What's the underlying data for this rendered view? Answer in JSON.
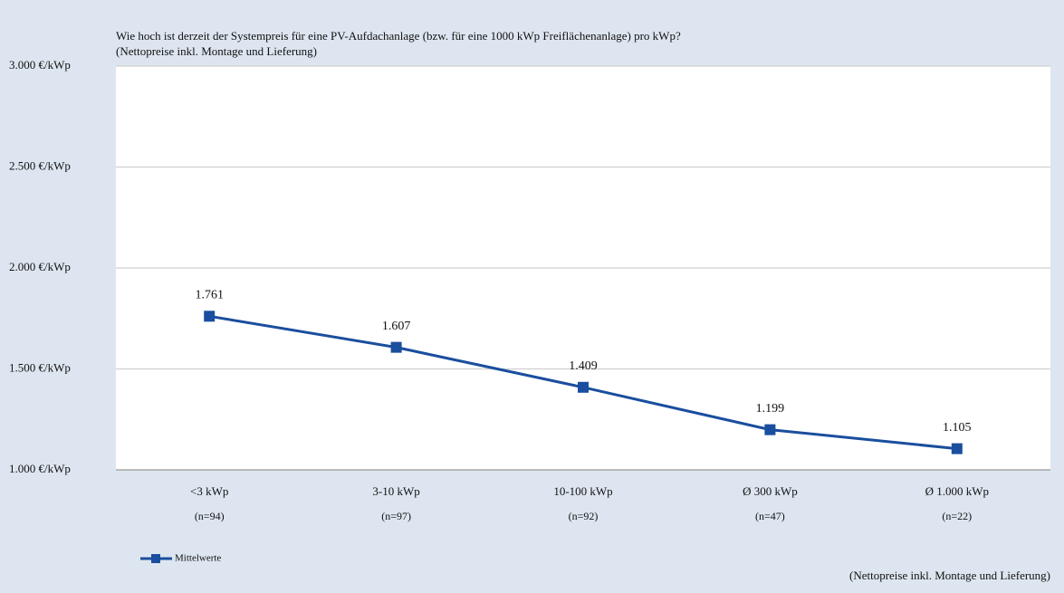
{
  "chart_data": {
    "type": "line",
    "title": "Wie hoch ist derzeit der Systempreis für eine PV-Aufdachanlage  (bzw. für eine 1000 kWp Freiflächenanlage)  pro kWp?",
    "subtitle": "(Nettopreise  inkl. Montage und Lieferung)",
    "footnote": "(Nettopreise inkl. Montage und Lieferung)",
    "categories": [
      "<3 kWp",
      "3-10 kWp",
      "10-100 kWp",
      "Ø 300 kWp",
      "Ø 1.000 kWp"
    ],
    "sample_sizes": [
      "(n=94)",
      "(n=97)",
      "(n=92)",
      "(n=47)",
      "(n=22)"
    ],
    "series": [
      {
        "name": "Mittelwerte",
        "color": "#1a4e9e",
        "values": [
          1761,
          1607,
          1409,
          1199,
          1105
        ],
        "value_labels": [
          "1.761",
          "1.607",
          "1.409",
          "1.199",
          "1.105"
        ]
      }
    ],
    "ylim": [
      1000,
      3000
    ],
    "yticks": [
      {
        "value": 1000,
        "label": "1.000 €/kWp"
      },
      {
        "value": 1500,
        "label": "1.500 €/kWp"
      },
      {
        "value": 2000,
        "label": "2.000 €/kWp"
      },
      {
        "value": 2500,
        "label": "2.500 €/kWp"
      },
      {
        "value": 3000,
        "label": "3.000 €/kWp"
      }
    ],
    "grid": true,
    "legend": "bottom-left"
  }
}
